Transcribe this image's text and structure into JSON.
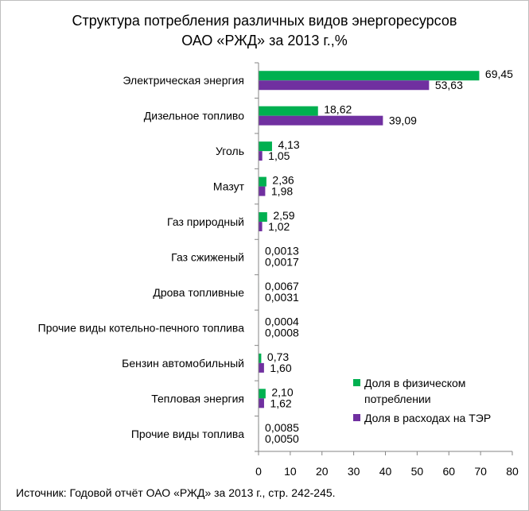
{
  "chart_data": {
    "type": "bar",
    "orientation": "horizontal",
    "title": [
      "Структура потребления различных видов энергоресурсов",
      "ОАО «РЖД» за 2013 г.,%"
    ],
    "categories": [
      "Электрическая энергия",
      "Дизельное топливо",
      "Уголь",
      "Мазут",
      "Газ природный",
      "Газ сжиженый",
      "Дрова топливные",
      "Прочие виды котельно-печного  топлива",
      "Бензин автомобильный",
      "Тепловая энергия",
      "Прочие виды топлива"
    ],
    "series": [
      {
        "name": "Доля в физическом потреблении",
        "color": "#00b050",
        "values": [
          69.45,
          18.62,
          4.13,
          2.36,
          2.59,
          0.0013,
          0.0067,
          0.0004,
          0.73,
          2.1,
          0.0085
        ],
        "labels": [
          "69,45",
          "18,62",
          "4,13",
          "2,36",
          "2,59",
          "0,0013",
          "0,0067",
          "0,0004",
          "0,73",
          "2,10",
          "0,0085"
        ]
      },
      {
        "name": "Доля в расходах на ТЭР",
        "color": "#7030a0",
        "values": [
          53.63,
          39.09,
          1.05,
          1.98,
          1.02,
          0.0017,
          0.0031,
          0.0008,
          1.6,
          1.62,
          0.005
        ],
        "labels": [
          "53,63",
          "39,09",
          "1,05",
          "1,98",
          "1,02",
          "0,0017",
          "0,0031",
          "0,0008",
          "1,60",
          "1,62",
          "0,0050"
        ]
      }
    ],
    "xlim": [
      0,
      80
    ],
    "xticks": [
      0,
      10,
      20,
      30,
      40,
      50,
      60,
      70,
      80
    ],
    "grid": false,
    "legend_position": "bottom-right"
  },
  "source": "Источник: Годовой отчёт ОАО «РЖД» за 2013 г., стр. 242-245."
}
